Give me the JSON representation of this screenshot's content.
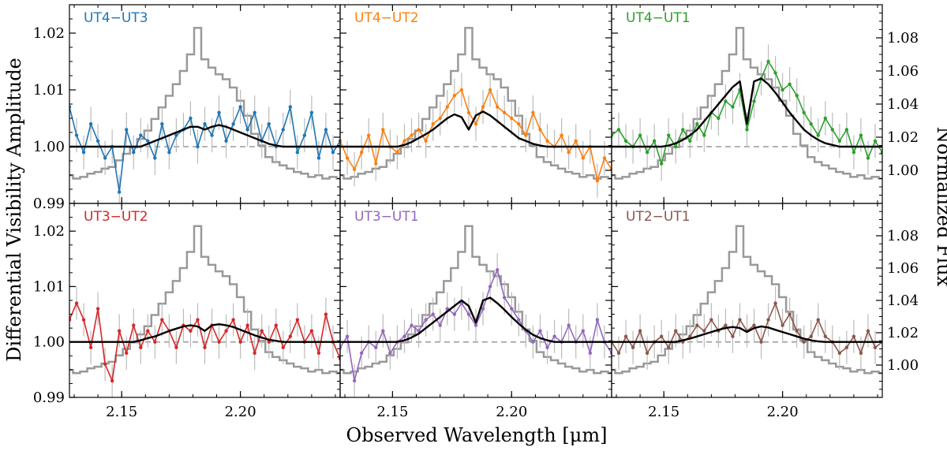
{
  "chart_data": {
    "type": "line",
    "layout": "2x3 grid of panels with shared axes",
    "xlabel": "Observed Wavelength [μm]",
    "ylabel_left": "Differential Visibility Amplitude",
    "ylabel_right": "Normalized Flux",
    "xlim": [
      2.128,
      2.242
    ],
    "xticks": [
      2.15,
      2.2
    ],
    "xtick_labels": [
      "2.15",
      "2.20"
    ],
    "ylim_left": [
      0.99,
      1.025
    ],
    "yticks_left": [
      0.99,
      1.0,
      1.01,
      1.02
    ],
    "ytick_labels_left": [
      "0.99",
      "1.00",
      "1.01",
      "1.02"
    ],
    "ylim_right": [
      0.98,
      1.1
    ],
    "yticks_right": [
      1.0,
      1.02,
      1.04,
      1.06,
      1.08
    ],
    "ytick_labels_right": [
      "1.00",
      "1.02",
      "1.04",
      "1.06",
      "1.08"
    ],
    "reference_line": 1.0,
    "flux_spectrum": {
      "name": "Normalized flux",
      "color": "#999999",
      "x": [
        2.128,
        2.131,
        2.134,
        2.137,
        2.14,
        2.143,
        2.146,
        2.149,
        2.152,
        2.155,
        2.158,
        2.161,
        2.164,
        2.167,
        2.17,
        2.173,
        2.176,
        2.179,
        2.182,
        2.185,
        2.188,
        2.191,
        2.194,
        2.197,
        2.2,
        2.203,
        2.206,
        2.209,
        2.212,
        2.215,
        2.218,
        2.221,
        2.224,
        2.227,
        2.23,
        2.233,
        2.236,
        2.239,
        2.242
      ],
      "y": [
        0.997,
        0.995,
        0.996,
        0.998,
        0.999,
        1.001,
        1.002,
        1.006,
        1.01,
        1.014,
        1.019,
        1.024,
        1.031,
        1.038,
        1.045,
        1.052,
        1.06,
        1.07,
        1.086,
        1.067,
        1.062,
        1.058,
        1.055,
        1.05,
        1.042,
        1.033,
        1.022,
        1.015,
        1.008,
        1.005,
        1.003,
        1.001,
        0.999,
        0.998,
        0.996,
        0.997,
        0.995,
        0.996,
        0.995
      ]
    },
    "panels": [
      {
        "title": "UT4−UT3",
        "color": "#1f77b4",
        "x": [
          2.128,
          2.131,
          2.134,
          2.137,
          2.14,
          2.143,
          2.146,
          2.149,
          2.152,
          2.155,
          2.158,
          2.161,
          2.164,
          2.167,
          2.17,
          2.173,
          2.176,
          2.179,
          2.182,
          2.185,
          2.188,
          2.191,
          2.194,
          2.197,
          2.2,
          2.203,
          2.206,
          2.209,
          2.212,
          2.215,
          2.218,
          2.221,
          2.224,
          2.227,
          2.23,
          2.233,
          2.236,
          2.239,
          2.242
        ],
        "values": [
          1.007,
          1.002,
          0.999,
          1.004,
          1.001,
          0.998,
          1.0,
          0.992,
          1.003,
          0.999,
          1.002,
          1.001,
          0.998,
          1.004,
          0.999,
          1.002,
          1.003,
          1.005,
          1.0,
          1.004,
          1.002,
          1.006,
          1.001,
          1.004,
          1.007,
          1.003,
          1.006,
          1.001,
          1.004,
          1.0,
          1.003,
          1.007,
          0.999,
          1.002,
          1.006,
          0.998,
          1.003,
          0.999,
          1.001
        ],
        "errors": [
          0.003,
          0.003,
          0.003,
          0.003,
          0.003,
          0.003,
          0.003,
          0.003,
          0.003,
          0.003,
          0.003,
          0.003,
          0.003,
          0.003,
          0.003,
          0.003,
          0.003,
          0.003,
          0.003,
          0.003,
          0.003,
          0.003,
          0.003,
          0.003,
          0.003,
          0.003,
          0.003,
          0.003,
          0.003,
          0.003,
          0.003,
          0.003,
          0.003,
          0.003,
          0.003,
          0.003,
          0.003,
          0.003,
          0.003
        ],
        "model": [
          1.0,
          1.0,
          1.0,
          1.0,
          1.0,
          1.0,
          1.0,
          1.0,
          1.0,
          1.0,
          1.0,
          1.0005,
          1.001,
          1.0015,
          1.002,
          1.0025,
          1.003,
          1.0035,
          1.0035,
          1.003,
          1.0035,
          1.0038,
          1.0035,
          1.003,
          1.0025,
          1.002,
          1.0015,
          1.001,
          1.0005,
          1.0002,
          1.0,
          1.0,
          1.0,
          1.0,
          1.0,
          1.0,
          1.0,
          1.0,
          1.0
        ]
      },
      {
        "title": "UT4−UT2",
        "color": "#ff7f0e",
        "x": [
          2.128,
          2.131,
          2.134,
          2.137,
          2.14,
          2.143,
          2.146,
          2.149,
          2.152,
          2.155,
          2.158,
          2.161,
          2.164,
          2.167,
          2.17,
          2.173,
          2.176,
          2.179,
          2.182,
          2.185,
          2.188,
          2.191,
          2.194,
          2.197,
          2.2,
          2.203,
          2.206,
          2.209,
          2.212,
          2.215,
          2.218,
          2.221,
          2.224,
          2.227,
          2.23,
          2.233,
          2.236,
          2.239,
          2.242
        ],
        "values": [
          1.001,
          0.998,
          0.996,
          0.999,
          1.002,
          0.997,
          1.003,
          1.0,
          0.999,
          1.001,
          1.002,
          1.003,
          1.001,
          1.004,
          1.005,
          1.007,
          1.009,
          1.01,
          1.006,
          1.004,
          1.007,
          1.01,
          1.007,
          1.006,
          1.005,
          1.004,
          1.002,
          1.006,
          1.003,
          1.001,
          1.0,
          1.002,
          0.999,
          1.001,
          0.998,
          1.0,
          0.994,
          0.998,
          0.996
        ],
        "errors": [
          0.003,
          0.003,
          0.003,
          0.003,
          0.003,
          0.003,
          0.003,
          0.003,
          0.003,
          0.003,
          0.003,
          0.003,
          0.003,
          0.003,
          0.003,
          0.003,
          0.003,
          0.003,
          0.003,
          0.003,
          0.003,
          0.003,
          0.003,
          0.003,
          0.003,
          0.003,
          0.003,
          0.003,
          0.003,
          0.003,
          0.003,
          0.003,
          0.003,
          0.003,
          0.003,
          0.003,
          0.003,
          0.003,
          0.003
        ],
        "model": [
          1.0,
          1.0,
          1.0,
          1.0,
          1.0,
          1.0,
          1.0,
          1.0,
          1.0,
          1.0003,
          1.0008,
          1.0015,
          1.0022,
          1.003,
          1.004,
          1.005,
          1.0057,
          1.0052,
          1.003,
          1.0055,
          1.0062,
          1.0055,
          1.0045,
          1.0035,
          1.0025,
          1.0015,
          1.001,
          1.0005,
          1.0002,
          1.0,
          1.0,
          1.0,
          1.0,
          1.0,
          1.0,
          1.0,
          1.0,
          1.0,
          1.0
        ]
      },
      {
        "title": "UT4−UT1",
        "color": "#2ca02c",
        "x": [
          2.128,
          2.131,
          2.134,
          2.137,
          2.14,
          2.143,
          2.146,
          2.149,
          2.152,
          2.155,
          2.158,
          2.161,
          2.164,
          2.167,
          2.17,
          2.173,
          2.176,
          2.179,
          2.182,
          2.185,
          2.188,
          2.191,
          2.194,
          2.197,
          2.2,
          2.203,
          2.206,
          2.209,
          2.212,
          2.215,
          2.218,
          2.221,
          2.224,
          2.227,
          2.23,
          2.233,
          2.236,
          2.239,
          2.242
        ],
        "values": [
          1.002,
          1.003,
          1.001,
          1.0,
          1.002,
          0.999,
          1.001,
          0.997,
          1.002,
          1.0,
          1.003,
          1.001,
          1.004,
          1.002,
          1.006,
          1.005,
          1.008,
          1.007,
          1.01,
          1.003,
          1.008,
          1.012,
          1.015,
          1.013,
          1.01,
          1.011,
          1.009,
          1.006,
          1.004,
          1.002,
          1.005,
          1.003,
          1.001,
          1.003,
          0.999,
          1.002,
          0.998,
          1.001,
          0.999
        ],
        "errors": [
          0.003,
          0.003,
          0.003,
          0.003,
          0.003,
          0.003,
          0.003,
          0.003,
          0.003,
          0.003,
          0.003,
          0.003,
          0.003,
          0.003,
          0.003,
          0.003,
          0.003,
          0.003,
          0.003,
          0.003,
          0.003,
          0.003,
          0.003,
          0.003,
          0.003,
          0.003,
          0.003,
          0.003,
          0.003,
          0.003,
          0.003,
          0.003,
          0.003,
          0.003,
          0.003,
          0.003,
          0.003,
          0.003,
          0.003
        ],
        "model": [
          1.0,
          1.0,
          1.0,
          1.0,
          1.0,
          1.0,
          1.0,
          1.0,
          1.0002,
          1.0006,
          1.0012,
          1.002,
          1.003,
          1.0045,
          1.006,
          1.0075,
          1.009,
          1.0105,
          1.0115,
          1.004,
          1.0115,
          1.012,
          1.011,
          1.0095,
          1.0078,
          1.006,
          1.0045,
          1.003,
          1.002,
          1.0012,
          1.0006,
          1.0003,
          1.0,
          1.0,
          1.0,
          1.0,
          1.0,
          1.0,
          1.0
        ]
      },
      {
        "title": "UT3−UT2",
        "color": "#d62728",
        "x": [
          2.128,
          2.131,
          2.134,
          2.137,
          2.14,
          2.143,
          2.146,
          2.149,
          2.152,
          2.155,
          2.158,
          2.161,
          2.164,
          2.167,
          2.17,
          2.173,
          2.176,
          2.179,
          2.182,
          2.185,
          2.188,
          2.191,
          2.194,
          2.197,
          2.2,
          2.203,
          2.206,
          2.209,
          2.212,
          2.215,
          2.218,
          2.221,
          2.224,
          2.227,
          2.23,
          2.233,
          2.236,
          2.239,
          2.242
        ],
        "values": [
          1.004,
          1.007,
          1.004,
          0.999,
          1.006,
          0.996,
          0.993,
          1.002,
          0.998,
          1.003,
          0.999,
          1.002,
          1.0,
          1.004,
          1.002,
          0.999,
          1.003,
          1.002,
          1.004,
          0.999,
          1.003,
          1.0,
          1.002,
          1.004,
          1.0,
          1.003,
          0.998,
          1.002,
          1.0,
          1.003,
          0.999,
          1.001,
          1.004,
          1.0,
          1.002,
          0.998,
          1.005,
          1.0,
          0.997
        ],
        "errors": [
          0.003,
          0.003,
          0.003,
          0.003,
          0.003,
          0.003,
          0.003,
          0.003,
          0.003,
          0.003,
          0.003,
          0.003,
          0.003,
          0.003,
          0.003,
          0.003,
          0.003,
          0.003,
          0.003,
          0.003,
          0.003,
          0.003,
          0.003,
          0.003,
          0.003,
          0.003,
          0.003,
          0.003,
          0.003,
          0.003,
          0.003,
          0.003,
          0.003,
          0.003,
          0.003,
          0.003,
          0.003,
          0.003,
          0.003
        ],
        "model": [
          1.0,
          1.0,
          1.0,
          1.0,
          1.0,
          1.0,
          1.0,
          1.0,
          1.0,
          1.0,
          1.0003,
          1.0007,
          1.001,
          1.0015,
          1.002,
          1.0024,
          1.0028,
          1.003,
          1.0028,
          1.002,
          1.003,
          1.0032,
          1.003,
          1.0027,
          1.0022,
          1.0017,
          1.0012,
          1.0008,
          1.0004,
          1.0002,
          1.0,
          1.0,
          1.0,
          1.0,
          1.0,
          1.0,
          1.0,
          1.0,
          1.0
        ]
      },
      {
        "title": "UT3−UT1",
        "color": "#9467bd",
        "x": [
          2.128,
          2.131,
          2.134,
          2.137,
          2.14,
          2.143,
          2.146,
          2.149,
          2.152,
          2.155,
          2.158,
          2.161,
          2.164,
          2.167,
          2.17,
          2.173,
          2.176,
          2.179,
          2.182,
          2.185,
          2.188,
          2.191,
          2.194,
          2.197,
          2.2,
          2.203,
          2.206,
          2.209,
          2.212,
          2.215,
          2.218,
          2.221,
          2.224,
          2.227,
          2.23,
          2.233,
          2.236,
          2.239,
          2.242
        ],
        "values": [
          0.999,
          1.001,
          0.993,
          0.998,
          1.0,
          0.999,
          1.002,
          0.998,
          1.0,
          1.001,
          1.003,
          1.002,
          1.004,
          1.005,
          1.003,
          1.006,
          1.005,
          1.007,
          1.005,
          1.003,
          1.006,
          1.01,
          1.013,
          1.008,
          1.006,
          1.004,
          1.002,
          1.0,
          1.002,
          0.999,
          1.001,
          1.0,
          1.003,
          1.0,
          1.002,
          0.998,
          1.004,
          1.0,
          0.998
        ],
        "errors": [
          0.003,
          0.003,
          0.003,
          0.003,
          0.003,
          0.003,
          0.003,
          0.003,
          0.003,
          0.003,
          0.003,
          0.003,
          0.003,
          0.003,
          0.003,
          0.003,
          0.003,
          0.003,
          0.003,
          0.003,
          0.003,
          0.003,
          0.003,
          0.003,
          0.003,
          0.003,
          0.003,
          0.003,
          0.003,
          0.003,
          0.003,
          0.003,
          0.003,
          0.003,
          0.003,
          0.003,
          0.003,
          0.003,
          0.003
        ],
        "model": [
          1.0,
          1.0,
          1.0,
          1.0,
          1.0,
          1.0,
          1.0,
          1.0,
          1.0,
          1.0003,
          1.0008,
          1.0015,
          1.0025,
          1.0035,
          1.0045,
          1.0055,
          1.0065,
          1.0075,
          1.0065,
          1.0035,
          1.0075,
          1.008,
          1.007,
          1.0058,
          1.0045,
          1.0033,
          1.0022,
          1.0013,
          1.0007,
          1.0003,
          1.0,
          1.0,
          1.0,
          1.0,
          1.0,
          1.0,
          1.0,
          1.0,
          1.0
        ]
      },
      {
        "title": "UT2−UT1",
        "color": "#8c564b",
        "x": [
          2.128,
          2.131,
          2.134,
          2.137,
          2.14,
          2.143,
          2.146,
          2.149,
          2.152,
          2.155,
          2.158,
          2.161,
          2.164,
          2.167,
          2.17,
          2.173,
          2.176,
          2.179,
          2.182,
          2.185,
          2.188,
          2.191,
          2.194,
          2.197,
          2.2,
          2.203,
          2.206,
          2.209,
          2.212,
          2.215,
          2.218,
          2.221,
          2.224,
          2.227,
          2.23,
          2.233,
          2.236,
          2.239,
          2.242
        ],
        "values": [
          1.0,
          0.998,
          1.001,
          0.999,
          1.002,
          0.998,
          1.0,
          1.001,
          0.999,
          1.002,
          1.0,
          1.001,
          1.003,
          1.002,
          1.004,
          1.002,
          1.003,
          1.001,
          1.004,
          1.002,
          1.003,
          1.0,
          1.004,
          1.007,
          1.003,
          1.005,
          1.002,
          1.0,
          1.001,
          1.004,
          1.001,
          1.0,
          0.998,
          0.999,
          1.001,
          0.998,
          1.002,
          0.999,
          1.0
        ],
        "errors": [
          0.003,
          0.003,
          0.003,
          0.003,
          0.003,
          0.003,
          0.003,
          0.003,
          0.003,
          0.003,
          0.003,
          0.003,
          0.003,
          0.003,
          0.003,
          0.003,
          0.003,
          0.003,
          0.003,
          0.003,
          0.003,
          0.003,
          0.003,
          0.003,
          0.003,
          0.003,
          0.003,
          0.003,
          0.003,
          0.003,
          0.003,
          0.003,
          0.003,
          0.003,
          0.003,
          0.003,
          0.003,
          0.003,
          0.003
        ],
        "model": [
          1.0,
          1.0,
          1.0,
          1.0,
          1.0,
          1.0,
          1.0,
          1.0,
          1.0,
          1.0,
          1.0003,
          1.0006,
          1.001,
          1.0014,
          1.0018,
          1.0022,
          1.0025,
          1.0027,
          1.0025,
          1.0018,
          1.0025,
          1.0028,
          1.0026,
          1.0022,
          1.0018,
          1.0014,
          1.001,
          1.0006,
          1.0003,
          1.0001,
          1.0,
          1.0,
          1.0,
          1.0,
          1.0,
          1.0,
          1.0,
          1.0,
          1.0
        ]
      }
    ]
  }
}
